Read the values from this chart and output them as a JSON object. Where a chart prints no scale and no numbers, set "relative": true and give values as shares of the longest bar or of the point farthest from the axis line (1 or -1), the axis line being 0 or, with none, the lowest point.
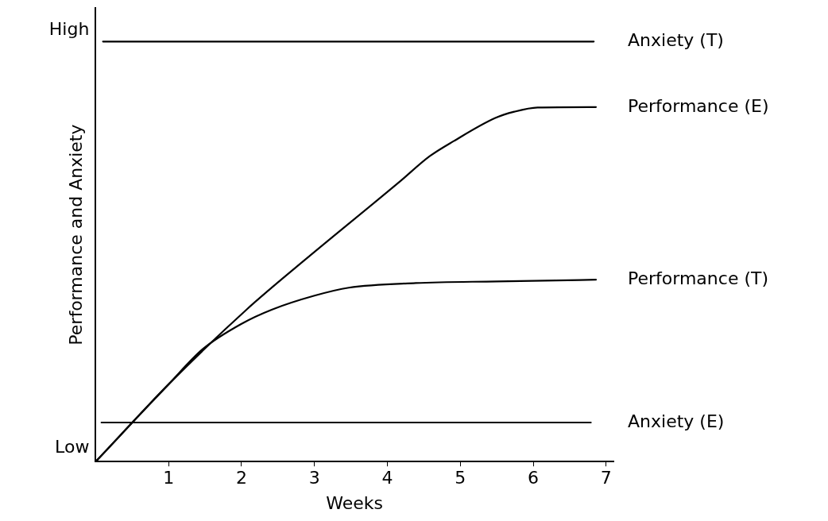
{
  "chart_data": {
    "type": "line",
    "xlabel": "Weeks",
    "ylabel": "Performance and Anxiety",
    "xlim": [
      0,
      7.1
    ],
    "xticks": [
      1,
      2,
      3,
      4,
      5,
      6,
      7
    ],
    "relative": true,
    "annotations": [
      "High",
      "Low"
    ],
    "grid": false,
    "legend": false,
    "marker": "none",
    "line_style": "solid",
    "series": [
      {
        "name": "Anxiety (T)",
        "color": "#000000",
        "x": [
          0.1,
          6.83
        ],
        "values": [
          1,
          1
        ]
      },
      {
        "name": "Performance (E)",
        "color": "#000000",
        "x": [
          0,
          1,
          2.07,
          2.84,
          4.18,
          4.58,
          4.91,
          5.48,
          5.74,
          6.06,
          6.86
        ],
        "values": [
          0,
          0.184,
          0.362,
          0.476,
          0.668,
          0.727,
          0.763,
          0.818,
          0.833,
          0.843,
          0.844
        ]
      },
      {
        "name": "Performance (T)",
        "color": "#000000",
        "x": [
          0,
          1,
          1.47,
          2,
          2.42,
          3,
          3.47,
          4.39,
          5.5,
          6.86
        ],
        "values": [
          0,
          0.184,
          0.268,
          0.328,
          0.362,
          0.395,
          0.414,
          0.425,
          0.429,
          0.433
        ]
      },
      {
        "name": "Anxiety (E)",
        "color": "#000000",
        "x": [
          0.08,
          6.79
        ],
        "values": [
          0.093,
          0.093
        ]
      }
    ]
  }
}
